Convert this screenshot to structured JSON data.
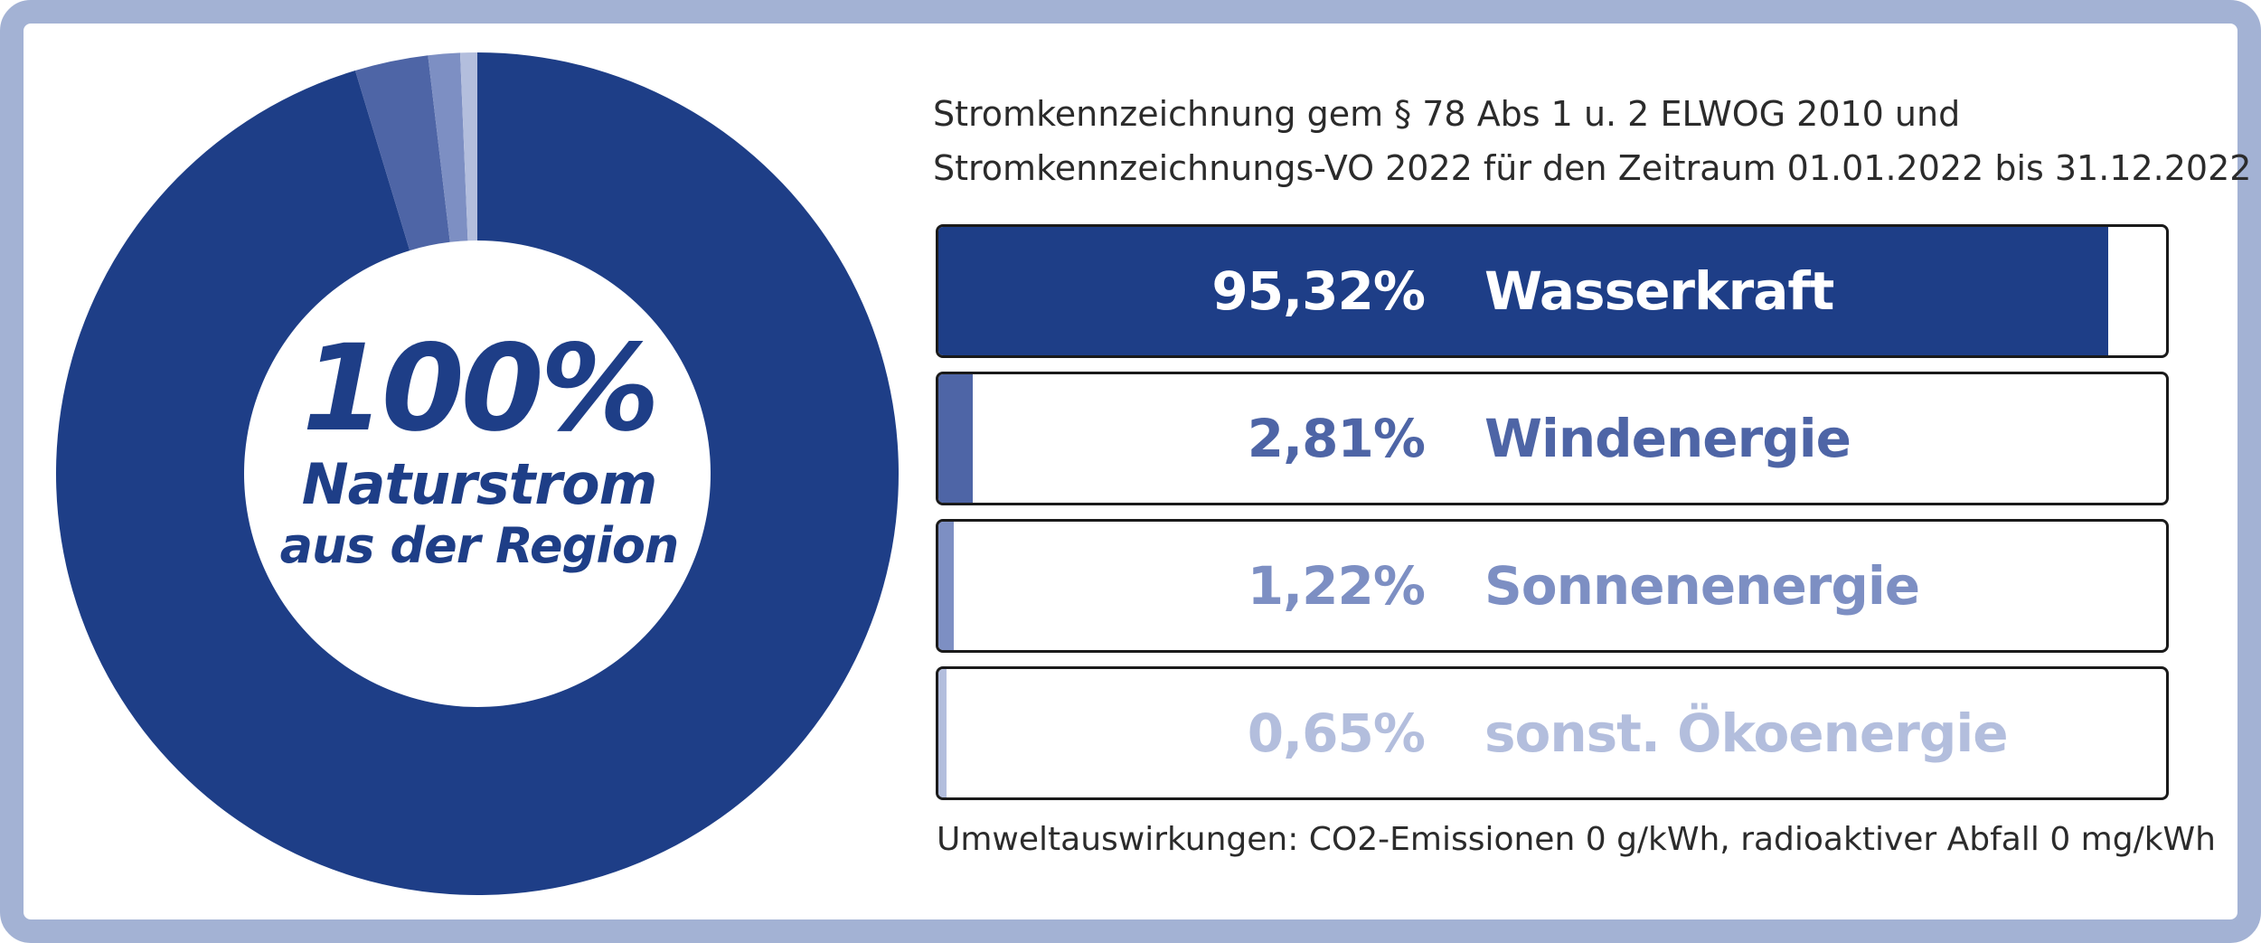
{
  "chart_data": {
    "type": "donut-and-bar",
    "center_text": {
      "big": "100%",
      "line2": "Naturstrom",
      "line3": "aus der Region"
    },
    "title_line1": "Stromkennzeichnung gem § 78 Abs 1 u. 2 ELWOG 2010 und",
    "title_line2": "Stromkennzeichnungs-VO 2022 für den Zeitraum 01.01.2022 bis 31.12.2022",
    "series": [
      {
        "name": "Wasserkraft",
        "value": 95.32,
        "value_label": "95,32%",
        "color": "#1e3e87",
        "label_color": "#ffffff"
      },
      {
        "name": "Windenergie",
        "value": 2.81,
        "value_label": "2,81%",
        "color": "#4e65a6",
        "label_color": "#4e65a6"
      },
      {
        "name": "Sonnenenergie",
        "value": 1.22,
        "value_label": "1,22%",
        "color": "#7d8fc3",
        "label_color": "#7d8fc3"
      },
      {
        "name": "sonst. Ökoenergie",
        "value": 0.65,
        "value_label": "0,65%",
        "color": "#b3bedd",
        "label_color": "#b3bedd"
      }
    ],
    "footnote": "Umweltauswirkungen: CO2-Emissionen 0 g/kWh, radioaktiver Abfall 0 mg/kWh"
  }
}
